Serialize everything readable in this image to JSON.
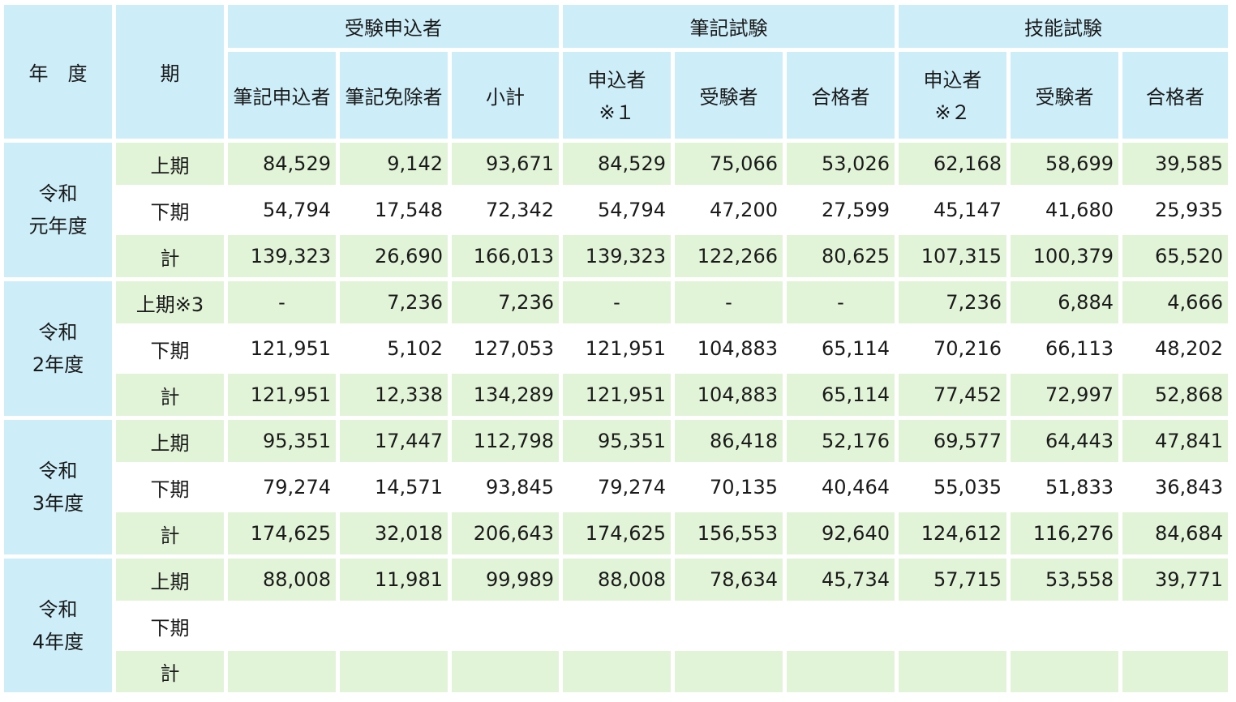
{
  "header": {
    "year_label": "年　度",
    "period_label": "期",
    "groups": [
      "受験申込者",
      "筆記試験",
      "技能試験"
    ],
    "subs": [
      {
        "line1": "筆記申込者",
        "line2": ""
      },
      {
        "line1": "筆記免除者",
        "line2": ""
      },
      {
        "line1": "小計",
        "line2": ""
      },
      {
        "line1": "申込者",
        "line2": "※１"
      },
      {
        "line1": "受験者",
        "line2": ""
      },
      {
        "line1": "合格者",
        "line2": ""
      },
      {
        "line1": "申込者",
        "line2": "※２"
      },
      {
        "line1": "受験者",
        "line2": ""
      },
      {
        "line1": "合格者",
        "line2": ""
      }
    ]
  },
  "years": [
    {
      "label1": "令和",
      "label2": "元年度",
      "rows": [
        {
          "period": "上期",
          "values": [
            "84,529",
            "9,142",
            "93,671",
            "84,529",
            "75,066",
            "53,026",
            "62,168",
            "58,699",
            "39,585"
          ]
        },
        {
          "period": "下期",
          "values": [
            "54,794",
            "17,548",
            "72,342",
            "54,794",
            "47,200",
            "27,599",
            "45,147",
            "41,680",
            "25,935"
          ]
        },
        {
          "period": "計",
          "values": [
            "139,323",
            "26,690",
            "166,013",
            "139,323",
            "122,266",
            "80,625",
            "107,315",
            "100,379",
            "65,520"
          ]
        }
      ]
    },
    {
      "label1": "令和",
      "label2": "2年度",
      "rows": [
        {
          "period": "上期※3",
          "values": [
            "-",
            "7,236",
            "7,236",
            "-",
            "-",
            "-",
            "7,236",
            "6,884",
            "4,666"
          ]
        },
        {
          "period": "下期",
          "values": [
            "121,951",
            "5,102",
            "127,053",
            "121,951",
            "104,883",
            "65,114",
            "70,216",
            "66,113",
            "48,202"
          ]
        },
        {
          "period": "計",
          "values": [
            "121,951",
            "12,338",
            "134,289",
            "121,951",
            "104,883",
            "65,114",
            "77,452",
            "72,997",
            "52,868"
          ]
        }
      ]
    },
    {
      "label1": "令和",
      "label2": "3年度",
      "rows": [
        {
          "period": "上期",
          "values": [
            "95,351",
            "17,447",
            "112,798",
            "95,351",
            "86,418",
            "52,176",
            "69,577",
            "64,443",
            "47,841"
          ]
        },
        {
          "period": "下期",
          "values": [
            "79,274",
            "14,571",
            "93,845",
            "79,274",
            "70,135",
            "40,464",
            "55,035",
            "51,833",
            "36,843"
          ]
        },
        {
          "period": "計",
          "values": [
            "174,625",
            "32,018",
            "206,643",
            "174,625",
            "156,553",
            "92,640",
            "124,612",
            "116,276",
            "84,684"
          ]
        }
      ]
    },
    {
      "label1": "令和",
      "label2": "4年度",
      "rows": [
        {
          "period": "上期",
          "values": [
            "88,008",
            "11,981",
            "99,989",
            "88,008",
            "78,634",
            "45,734",
            "57,715",
            "53,558",
            "39,771"
          ]
        },
        {
          "period": "下期",
          "values": [
            "",
            "",
            "",
            "",
            "",
            "",
            "",
            "",
            ""
          ]
        },
        {
          "period": "計",
          "values": [
            "",
            "",
            "",
            "",
            "",
            "",
            "",
            "",
            ""
          ]
        }
      ]
    }
  ],
  "colors": {
    "header_bg": "#cdeef9",
    "green_row": "#e2f4d8",
    "white_row": "#ffffff"
  }
}
